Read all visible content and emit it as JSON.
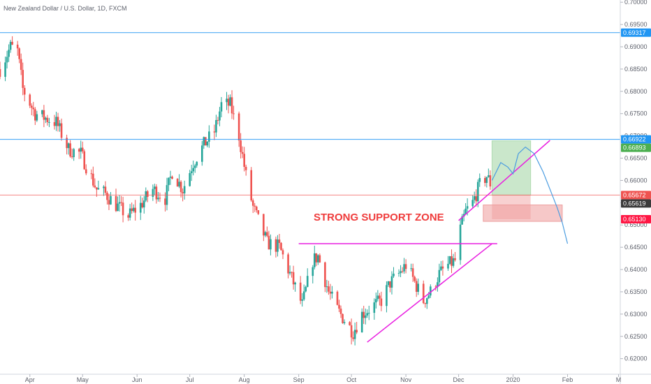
{
  "header": {
    "title": "New Zealand Dollar / U.S. Dollar, 1D, FXCM"
  },
  "colors": {
    "up": "#26a69a",
    "down": "#ef5350",
    "hline_blue": "#2196f3",
    "hline_red": "#ef5350",
    "magenta": "#e91ee0",
    "support_fill": "#ef9a9a",
    "target_green": "#66bb6a",
    "projection": "#4a9ce0",
    "badge_blue": "#2196f3",
    "badge_green": "#4caf50",
    "badge_red": "#ef5350",
    "badge_dark": "#3a3a3a",
    "badge_red_strong": "#ff1744"
  },
  "annotation": {
    "support_zone_label": "STRONG SUPPORT ZONE"
  },
  "chart_data": {
    "type": "candlestick",
    "title": "New Zealand Dollar / U.S. Dollar, 1D, FXCM",
    "y_axis": {
      "ylim": [
        0.6165,
        0.7005
      ],
      "ticks": [
        "0.70000",
        "0.69500",
        "0.69000",
        "0.68500",
        "0.68000",
        "0.67500",
        "0.67000",
        "0.66500",
        "0.66000",
        "0.65500",
        "0.65000",
        "0.64500",
        "0.64000",
        "0.63500",
        "0.63000",
        "0.62500",
        "0.62000"
      ]
    },
    "x_axis": {
      "range": [
        "2019-03-15",
        "2020-03-02"
      ],
      "ticks": [
        {
          "date": "2019-04-01",
          "label": "Apr"
        },
        {
          "date": "2019-05-01",
          "label": "May"
        },
        {
          "date": "2019-06-01",
          "label": "Jun"
        },
        {
          "date": "2019-07-01",
          "label": "Jul"
        },
        {
          "date": "2019-08-01",
          "label": "Aug"
        },
        {
          "date": "2019-09-01",
          "label": "Sep"
        },
        {
          "date": "2019-10-01",
          "label": "Oct"
        },
        {
          "date": "2019-11-01",
          "label": "Nov"
        },
        {
          "date": "2019-12-01",
          "label": "Dec"
        },
        {
          "date": "2020-01-01",
          "label": "2020"
        },
        {
          "date": "2020-02-01",
          "label": "Feb"
        },
        {
          "date": "2020-03-01",
          "label": "M"
        }
      ]
    },
    "price_points": [
      [
        "2019-03-15",
        0.685
      ],
      [
        "2019-03-21",
        0.69
      ],
      [
        "2019-03-25",
        0.689
      ],
      [
        "2019-03-28",
        0.6805
      ],
      [
        "2019-04-04",
        0.675
      ],
      [
        "2019-04-10",
        0.674
      ],
      [
        "2019-04-16",
        0.673
      ],
      [
        "2019-04-23",
        0.667
      ],
      [
        "2019-04-30",
        0.666
      ],
      [
        "2019-05-09",
        0.658
      ],
      [
        "2019-05-14",
        0.657
      ],
      [
        "2019-05-20",
        0.6545
      ],
      [
        "2019-05-27",
        0.652
      ],
      [
        "2019-06-03",
        0.6545
      ],
      [
        "2019-06-10",
        0.658
      ],
      [
        "2019-06-17",
        0.656
      ],
      [
        "2019-06-21",
        0.662
      ],
      [
        "2019-06-27",
        0.658
      ],
      [
        "2019-07-03",
        0.664
      ],
      [
        "2019-07-09",
        0.668
      ],
      [
        "2019-07-15",
        0.671
      ],
      [
        "2019-07-19",
        0.677
      ],
      [
        "2019-07-24",
        0.677
      ],
      [
        "2019-07-29",
        0.67
      ],
      [
        "2019-08-02",
        0.661
      ],
      [
        "2019-08-06",
        0.654
      ],
      [
        "2019-08-14",
        0.646
      ],
      [
        "2019-08-21",
        0.645
      ],
      [
        "2019-08-27",
        0.639
      ],
      [
        "2019-09-03",
        0.632
      ],
      [
        "2019-09-09",
        0.642
      ],
      [
        "2019-09-12",
        0.643
      ],
      [
        "2019-09-18",
        0.635
      ],
      [
        "2019-09-23",
        0.631
      ],
      [
        "2019-09-30",
        0.627
      ],
      [
        "2019-10-02",
        0.626
      ],
      [
        "2019-10-07",
        0.63
      ],
      [
        "2019-10-14",
        0.632
      ],
      [
        "2019-10-18",
        0.633
      ],
      [
        "2019-10-23",
        0.637
      ],
      [
        "2019-10-28",
        0.639
      ],
      [
        "2019-11-01",
        0.641
      ],
      [
        "2019-11-05",
        0.638
      ],
      [
        "2019-11-11",
        0.633
      ],
      [
        "2019-11-15",
        0.635
      ],
      [
        "2019-11-20",
        0.639
      ],
      [
        "2019-11-25",
        0.641
      ],
      [
        "2019-11-29",
        0.642
      ],
      [
        "2019-12-02",
        0.649
      ],
      [
        "2019-12-05",
        0.653
      ],
      [
        "2019-12-09",
        0.655
      ],
      [
        "2019-12-13",
        0.659
      ],
      [
        "2019-12-17",
        0.661
      ],
      [
        "2019-12-20",
        0.6585
      ]
    ],
    "horizontal_lines": [
      {
        "price": 0.69317,
        "color": "blue",
        "label": "0.69317"
      },
      {
        "price": 0.66922,
        "color": "blue",
        "label": "0.66922"
      },
      {
        "price": 0.65672,
        "color": "red",
        "label": "0.65672"
      }
    ],
    "price_badges": [
      {
        "label": "0.69317",
        "price": 0.69317,
        "color": "badge_blue"
      },
      {
        "label": "0.66922",
        "price": 0.66922,
        "color": "badge_blue"
      },
      {
        "label": "0.66893",
        "price": 0.66893,
        "color": "badge_green"
      },
      {
        "label": "0.65672",
        "price": 0.65672,
        "color": "badge_red"
      },
      {
        "label": "0.65619",
        "price": 0.65619,
        "color": "badge_dark"
      },
      {
        "label": "0.65130",
        "price": 0.6513,
        "color": "badge_red_strong"
      }
    ],
    "neckline": {
      "from": [
        "2019-09-01",
        0.6458
      ],
      "to": [
        "2019-12-23",
        0.6458
      ]
    },
    "rising_trendlines": [
      {
        "from": [
          "2019-10-10",
          0.6237
        ],
        "to": [
          "2019-12-20",
          0.6458
        ]
      },
      {
        "from": [
          "2019-12-01",
          0.651
        ],
        "to": [
          "2020-01-22",
          0.669
        ]
      }
    ],
    "support_zone": {
      "from": "2019-12-15",
      "to": "2020-01-29",
      "top": 0.6545,
      "bottom": 0.6508
    },
    "target_box": {
      "from": "2019-12-20",
      "to": "2020-01-11",
      "top": 0.6689,
      "bottom": 0.6567
    },
    "stop_box": {
      "from": "2019-12-20",
      "to": "2020-01-11",
      "top": 0.6567,
      "bottom": 0.6513
    },
    "projection_path": [
      [
        "2019-12-20",
        0.66
      ],
      [
        "2019-12-25",
        0.664
      ],
      [
        "2019-12-29",
        0.663
      ],
      [
        "2020-01-01",
        0.6615
      ],
      [
        "2020-01-04",
        0.666
      ],
      [
        "2020-01-08",
        0.6675
      ],
      [
        "2020-01-13",
        0.666
      ],
      [
        "2020-01-18",
        0.662
      ],
      [
        "2020-01-22",
        0.658
      ],
      [
        "2020-01-26",
        0.654
      ],
      [
        "2020-01-29",
        0.6505
      ],
      [
        "2020-02-01",
        0.6458
      ]
    ]
  }
}
